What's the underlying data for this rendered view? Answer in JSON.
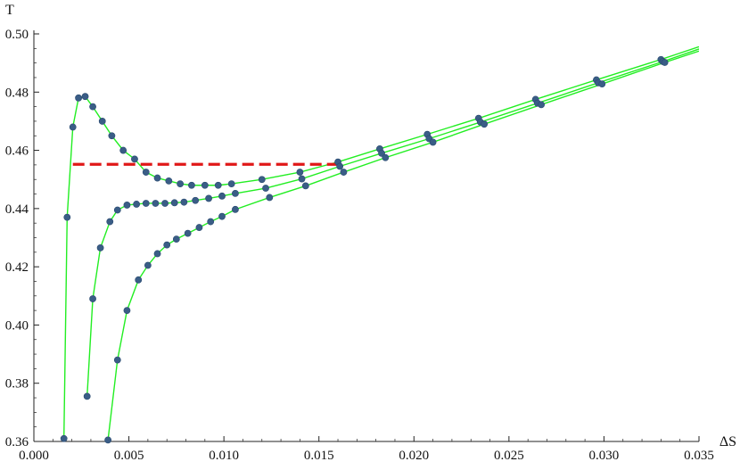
{
  "chart_data": {
    "type": "line",
    "xlabel": "ΔS",
    "ylabel": "T",
    "xlim": [
      0,
      0.035
    ],
    "ylim": [
      0.36,
      0.5
    ],
    "x_ticks": [
      "0.000",
      "0.005",
      "0.010",
      "0.015",
      "0.020",
      "0.025",
      "0.030",
      "0.035"
    ],
    "y_ticks": [
      "0.36",
      "0.38",
      "0.40",
      "0.42",
      "0.44",
      "0.46",
      "0.48",
      "0.50"
    ],
    "grid": false,
    "legend": "none",
    "series": [
      {
        "color": "#22ee22",
        "x": [
          0.00158,
          0.00175,
          0.00205,
          0.00235,
          0.0027,
          0.0031,
          0.0036,
          0.0041,
          0.0047,
          0.0053,
          0.0059,
          0.0065,
          0.0071,
          0.0077,
          0.0083,
          0.009,
          0.0097,
          0.0104,
          0.012,
          0.014,
          0.016,
          0.0182,
          0.0207,
          0.0234,
          0.0264,
          0.0296,
          0.033,
          0.035
        ],
        "y": [
          0.361,
          0.437,
          0.468,
          0.478,
          0.4785,
          0.475,
          0.47,
          0.465,
          0.46,
          0.457,
          0.4525,
          0.4505,
          0.4495,
          0.4485,
          0.448,
          0.448,
          0.448,
          0.4485,
          0.45,
          0.4525,
          0.456,
          0.4605,
          0.4655,
          0.471,
          0.4775,
          0.4842,
          0.4912,
          0.4956
        ]
      },
      {
        "color": "#22ee22",
        "x": [
          0.0028,
          0.0031,
          0.0035,
          0.004,
          0.0044,
          0.0049,
          0.0054,
          0.0059,
          0.0064,
          0.0069,
          0.0074,
          0.0079,
          0.0085,
          0.0092,
          0.0099,
          0.0106,
          0.0122,
          0.0141,
          0.0161,
          0.0183,
          0.0208,
          0.0235,
          0.0265,
          0.0297,
          0.0331,
          0.035
        ],
        "y": [
          0.3755,
          0.409,
          0.4265,
          0.4355,
          0.4395,
          0.4412,
          0.4415,
          0.4418,
          0.4418,
          0.4418,
          0.442,
          0.4422,
          0.4428,
          0.4435,
          0.4443,
          0.4452,
          0.447,
          0.4502,
          0.4545,
          0.459,
          0.464,
          0.4697,
          0.4762,
          0.4832,
          0.4905,
          0.4948
        ]
      },
      {
        "color": "#22ee22",
        "x": [
          0.0039,
          0.0044,
          0.0049,
          0.0055,
          0.006,
          0.0065,
          0.007,
          0.0075,
          0.0081,
          0.0087,
          0.0093,
          0.0099,
          0.0106,
          0.0124,
          0.0143,
          0.0163,
          0.0185,
          0.021,
          0.0237,
          0.0267,
          0.0299,
          0.0332,
          0.035
        ],
        "y": [
          0.3605,
          0.388,
          0.405,
          0.4155,
          0.4205,
          0.4245,
          0.4275,
          0.4295,
          0.4315,
          0.4335,
          0.4355,
          0.4373,
          0.4397,
          0.4438,
          0.4478,
          0.4525,
          0.4575,
          0.4628,
          0.469,
          0.4757,
          0.4828,
          0.4902,
          0.4941
        ]
      }
    ],
    "reference_line": {
      "style": "dashed",
      "color": "#e01818",
      "x": [
        0.00205,
        0.0161
      ],
      "y": [
        0.4552,
        0.4552
      ]
    }
  }
}
